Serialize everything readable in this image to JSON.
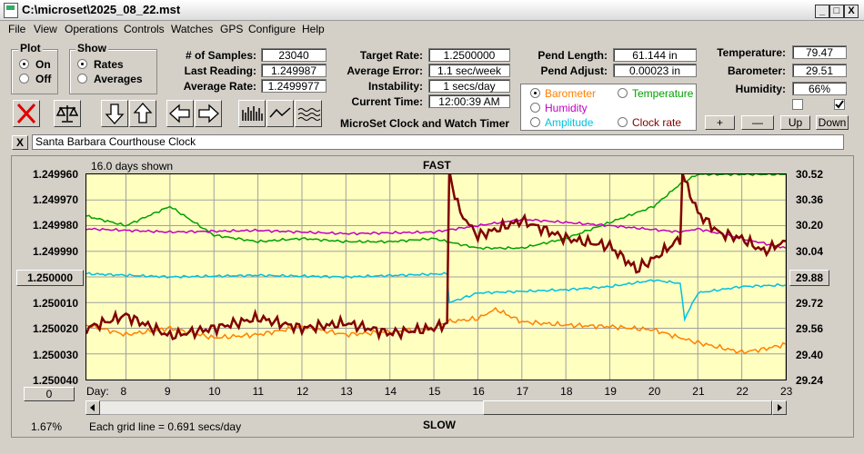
{
  "window": {
    "title": "C:\\microset\\2025_08_22.mst",
    "minimize": "_",
    "maximize": "□",
    "close": "X"
  },
  "menu": [
    "File",
    "View",
    "Operations",
    "Controls",
    "Watches",
    "GPS",
    "Configure",
    "Help"
  ],
  "plot_group": {
    "title": "Plot",
    "options": [
      "On",
      "Off"
    ],
    "selected": "On"
  },
  "show_group": {
    "title": "Show",
    "options": [
      "Rates",
      "Averages"
    ],
    "selected": "Rates"
  },
  "stats": {
    "samples_label": "# of Samples:",
    "samples": "23040",
    "last_label": "Last Reading:",
    "last": "1.249987",
    "avg_label": "Average Rate:",
    "avg": "1.2499977",
    "target_label": "Target Rate:",
    "target": "1.2500000",
    "avgerr_label": "Average Error:",
    "avgerr": "1.1 sec/week",
    "instab_label": "Instability:",
    "instab": "1 secs/day",
    "time_label": "Current Time:",
    "time": "12:00:39 AM",
    "pendlen_label": "Pend Length:",
    "pendlen": "61.144 in",
    "pendadj_label": "Pend Adjust:",
    "pendadj": "0.00023 in",
    "temp_label": "Temperature:",
    "temp": "79.47",
    "baro_label": "Barometer:",
    "baro": "29.51",
    "hum_label": "Humidity:",
    "hum": "66%"
  },
  "app_name": "MicroSet Clock and Watch Timer",
  "sensor_select": {
    "options": [
      {
        "label": "Barometer",
        "color": "#ff8000"
      },
      {
        "label": "Temperature",
        "color": "#00a000"
      },
      {
        "label": "Humidity",
        "color": "#c000c0"
      },
      {
        "label": "Amplitude",
        "color": "#00c0e0"
      },
      {
        "label": "Clock rate",
        "color": "#800000"
      }
    ],
    "selected": "Barometer"
  },
  "scale_buttons": {
    "plus": "+",
    "minus": "—",
    "up": "Up",
    "down": "Down"
  },
  "watch_name": "Santa Barbara Courthouse Clock",
  "clear_button": "X",
  "graph": {
    "days_shown": "16.0 days shown",
    "fast": "FAST",
    "slow": "SLOW",
    "day_label": "Day:",
    "grid_note": "Each grid line = 0.691 secs/day",
    "left_center_button": "1.250000",
    "right_center_button": "29.88",
    "bottom_button": "0",
    "percent": "1.67%"
  },
  "chart_data": {
    "type": "line",
    "x_label": "Day:",
    "x_ticks": [
      8,
      9,
      10,
      11,
      12,
      13,
      14,
      15,
      16,
      17,
      18,
      19,
      20,
      21,
      22,
      23
    ],
    "xlim": [
      7.1,
      23.0
    ],
    "left_axis": {
      "ticks": [
        "1.249960",
        "1.249970",
        "1.249980",
        "1.249990",
        "1.250000",
        "1.250010",
        "1.250020",
        "1.250030",
        "1.250040"
      ],
      "ylim": [
        1.25004,
        1.24996
      ]
    },
    "right_axis": {
      "ticks": [
        "30.52",
        "30.36",
        "30.20",
        "30.04",
        "29.88",
        "29.72",
        "29.56",
        "29.40",
        "29.24"
      ],
      "ylim": [
        29.24,
        30.52
      ]
    },
    "grid": true,
    "series": [
      {
        "name": "Barometer",
        "color": "#ff8000",
        "axis": "right",
        "points": [
          [
            7.1,
            29.58
          ],
          [
            8,
            29.52
          ],
          [
            9,
            29.56
          ],
          [
            10,
            29.5
          ],
          [
            11,
            29.52
          ],
          [
            12,
            29.57
          ],
          [
            13,
            29.52
          ],
          [
            14,
            29.54
          ],
          [
            15,
            29.56
          ],
          [
            15.3,
            29.6
          ],
          [
            16,
            29.62
          ],
          [
            16.4,
            29.68
          ],
          [
            17,
            29.6
          ],
          [
            18,
            29.58
          ],
          [
            19,
            29.57
          ],
          [
            20,
            29.55
          ],
          [
            20.6,
            29.5
          ],
          [
            21,
            29.47
          ],
          [
            22,
            29.41
          ],
          [
            22.5,
            29.43
          ],
          [
            23,
            29.46
          ]
        ]
      },
      {
        "name": "Temperature",
        "color": "#00a000",
        "axis": "right",
        "points": [
          [
            7.1,
            30.26
          ],
          [
            8,
            30.2
          ],
          [
            9,
            30.32
          ],
          [
            10,
            30.14
          ],
          [
            11,
            30.1
          ],
          [
            12,
            30.12
          ],
          [
            13,
            30.1
          ],
          [
            14,
            30.1
          ],
          [
            15,
            30.12
          ],
          [
            15.3,
            30.1
          ],
          [
            16,
            30.06
          ],
          [
            17,
            30.06
          ],
          [
            18,
            30.12
          ],
          [
            19,
            30.22
          ],
          [
            20,
            30.32
          ],
          [
            20.6,
            30.46
          ],
          [
            21,
            30.52
          ],
          [
            23,
            30.52
          ]
        ]
      },
      {
        "name": "Humidity",
        "color": "#c000c0",
        "axis": "right",
        "points": [
          [
            7.1,
            30.18
          ],
          [
            9,
            30.16
          ],
          [
            11,
            30.17
          ],
          [
            13,
            30.15
          ],
          [
            15,
            30.16
          ],
          [
            17,
            30.24
          ],
          [
            19,
            30.2
          ],
          [
            20.6,
            30.16
          ],
          [
            21,
            30.18
          ],
          [
            22,
            30.12
          ],
          [
            23,
            30.06
          ]
        ]
      },
      {
        "name": "Amplitude",
        "color": "#00c0e0",
        "axis": "right",
        "points": [
          [
            7.1,
            29.9
          ],
          [
            9,
            29.88
          ],
          [
            11,
            29.89
          ],
          [
            13,
            29.88
          ],
          [
            15.3,
            29.9
          ],
          [
            15.35,
            29.72
          ],
          [
            16,
            29.78
          ],
          [
            17,
            29.79
          ],
          [
            18,
            29.8
          ],
          [
            19,
            29.82
          ],
          [
            20,
            29.86
          ],
          [
            20.6,
            29.84
          ],
          [
            20.7,
            29.62
          ],
          [
            21,
            29.78
          ],
          [
            22,
            29.82
          ],
          [
            23,
            29.83
          ]
        ]
      },
      {
        "name": "Clock rate",
        "color": "#800000",
        "axis": "left",
        "points": [
          [
            7.1,
            1.25002
          ],
          [
            8,
            1.250015
          ],
          [
            9,
            1.250023
          ],
          [
            10,
            1.25002
          ],
          [
            11,
            1.250016
          ],
          [
            12,
            1.25002
          ],
          [
            13,
            1.250018
          ],
          [
            14,
            1.250022
          ],
          [
            15,
            1.25002
          ],
          [
            15.3,
            1.250018
          ],
          [
            15.35,
            1.24996
          ],
          [
            15.6,
            1.249975
          ],
          [
            16,
            1.249984
          ],
          [
            17,
            1.249978
          ],
          [
            18,
            1.249985
          ],
          [
            19,
            1.249988
          ],
          [
            19.6,
            1.249997
          ],
          [
            20,
            1.249993
          ],
          [
            20.6,
            1.249985
          ],
          [
            20.65,
            1.24996
          ],
          [
            21,
            1.249975
          ],
          [
            21.5,
            1.249983
          ],
          [
            22,
            1.249985
          ],
          [
            22.5,
            1.24999
          ],
          [
            23,
            1.249986
          ]
        ]
      }
    ]
  }
}
